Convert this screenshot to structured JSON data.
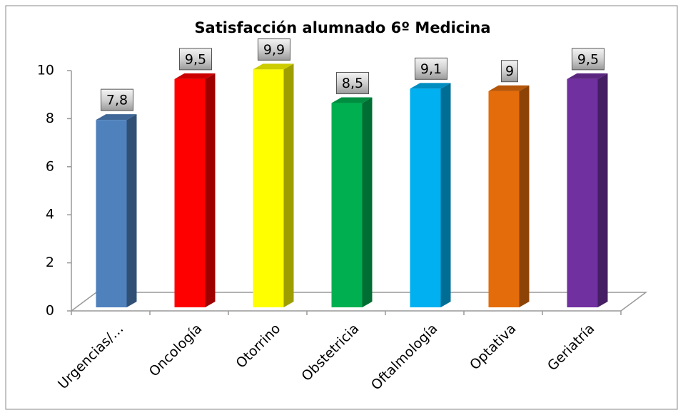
{
  "chart_data": {
    "type": "bar3d",
    "title": "Satisfacción alumnado 6º Medicina",
    "categories": [
      "Urgencias/…",
      "Oncología",
      "Otorrino",
      "Obstetricia",
      "Oftalmología",
      "Optativa",
      "Geriatría"
    ],
    "values": [
      7.8,
      9.5,
      9.9,
      8.5,
      9.1,
      9,
      9.5
    ],
    "value_labels": [
      "7,8",
      "9,5",
      "9,9",
      "8,5",
      "9,1",
      "9",
      "9,5"
    ],
    "colors": [
      "#4f81bd",
      "#ff0000",
      "#ffff00",
      "#00b050",
      "#00b0f0",
      "#e46c0a",
      "#7030a0"
    ],
    "ylim": [
      0,
      10
    ],
    "yticks": [
      0,
      2,
      4,
      6,
      8,
      10
    ],
    "grid": false
  }
}
